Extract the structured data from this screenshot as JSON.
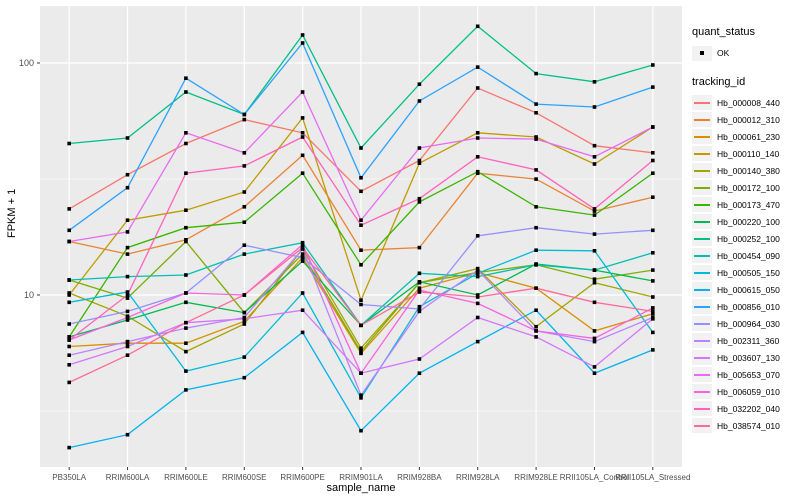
{
  "figure": {
    "y_axis_title": "FPKM + 1",
    "x_axis_title": "sample_name",
    "panel_background": "#EBEBEB",
    "gridline_color": "#FFFFFF",
    "tick_label_color": "#4D4D4D",
    "point_color": "#000000"
  },
  "legend": {
    "quant_status_title": "quant_status",
    "quant_status_items": [
      {
        "label": "OK",
        "marker": "black-point"
      }
    ],
    "tracking_id_title": "tracking_id"
  },
  "chart_data": {
    "type": "line",
    "title": "",
    "xlabel": "sample_name",
    "ylabel": "FPKM + 1",
    "y_scale": "log10",
    "ylim": [
      1.8,
      175
    ],
    "y_tick_values": [
      10,
      100
    ],
    "y_tick_labels": [
      "10",
      "100"
    ],
    "y_minor_gridlines": [
      3.162,
      31.62
    ],
    "grid": true,
    "legend_position": "right",
    "marker": "small black square on every point",
    "categories": [
      "PB350LA",
      "RRIM600LA",
      "RRIM600LE",
      "RRIM600SE",
      "RRIM600PE",
      "RRIM901LA",
      "RRIM928BA",
      "RRIM928LA",
      "RRIM928LE",
      "RRII105LA_Control",
      "RRII105LA_Stressed"
    ],
    "series": [
      {
        "name": "Hb_000008_440",
        "color": "#F8766D",
        "values": [
          23.5,
          33,
          45,
          57,
          50,
          28,
          38,
          78,
          61,
          44,
          41
        ]
      },
      {
        "name": "Hb_000012_310",
        "color": "#EA8331",
        "values": [
          17,
          15,
          17.3,
          24,
          40,
          15.6,
          16,
          33.5,
          31.6,
          23,
          26.4
        ]
      },
      {
        "name": "Hb_000061_230",
        "color": "#D89000",
        "values": [
          6.0,
          6.2,
          6.2,
          7.7,
          14.5,
          5.6,
          10.7,
          12.5,
          10.7,
          7.0,
          8.3
        ]
      },
      {
        "name": "Hb_000110_140",
        "color": "#C09B00",
        "values": [
          10,
          21,
          23.2,
          27.8,
          58,
          9.5,
          37,
          50,
          48,
          36.7,
          53
        ]
      },
      {
        "name": "Hb_000140_380",
        "color": "#A3A500",
        "values": [
          10.2,
          8.1,
          5.7,
          7.5,
          15.8,
          5.9,
          11.3,
          13,
          7.3,
          11.3,
          9.8
        ]
      },
      {
        "name": "Hb_000172_100",
        "color": "#7CAE00",
        "values": [
          11.6,
          9.7,
          17,
          8.4,
          15,
          5.7,
          11.3,
          12.5,
          13.5,
          11.7,
          12.8
        ]
      },
      {
        "name": "Hb_000173_470",
        "color": "#39B600",
        "values": [
          6.6,
          16,
          19.5,
          20.6,
          33.5,
          13.5,
          25.2,
          34,
          24,
          22.1,
          33.5
        ]
      },
      {
        "name": "Hb_000220_100",
        "color": "#00BB4E",
        "values": [
          6.6,
          7.8,
          9.3,
          8.4,
          14,
          7.4,
          11.4,
          10,
          13.6,
          12.8,
          11.5
        ]
      },
      {
        "name": "Hb_000252_100",
        "color": "#00C087",
        "values": [
          45,
          47.5,
          75,
          60,
          132,
          43,
          81,
          144,
          90,
          83,
          98
        ]
      },
      {
        "name": "Hb_000454_090",
        "color": "#00C0B2",
        "values": [
          11.6,
          12,
          12.2,
          15,
          16.8,
          7.4,
          12.4,
          12,
          13.5,
          12.8,
          15.2
        ]
      },
      {
        "name": "Hb_000505_150",
        "color": "#00BCD8",
        "values": [
          9.3,
          10.3,
          4.7,
          5.4,
          10.2,
          3.6,
          8.9,
          12.4,
          15.6,
          15.5,
          6.9
        ]
      },
      {
        "name": "Hb_000615_050",
        "color": "#00B3F0",
        "values": [
          2.2,
          2.5,
          3.9,
          4.4,
          6.9,
          2.6,
          4.6,
          6.3,
          8.6,
          4.6,
          5.8
        ]
      },
      {
        "name": "Hb_000856_010",
        "color": "#29A3FF",
        "values": [
          19,
          29,
          86,
          60,
          122,
          32,
          68.6,
          96,
          66.5,
          64.6,
          78.7
        ]
      },
      {
        "name": "Hb_000964_030",
        "color": "#9590FF",
        "values": [
          7.5,
          8.5,
          10.2,
          16.4,
          14.5,
          9.1,
          8.7,
          18,
          19.5,
          18.3,
          19
        ]
      },
      {
        "name": "Hb_002311_360",
        "color": "#B983FF",
        "values": [
          5.5,
          6.3,
          7.2,
          8.0,
          15.8,
          3.7,
          8.5,
          12.8,
          7.0,
          6.3,
          8.0
        ]
      },
      {
        "name": "Hb_003607_130",
        "color": "#D575FE",
        "values": [
          5.0,
          6.0,
          7.6,
          7.9,
          8.6,
          4.6,
          5.3,
          8.0,
          6.6,
          4.9,
          7.9
        ]
      },
      {
        "name": "Hb_005653_070",
        "color": "#E76BF3",
        "values": [
          17,
          18.7,
          50,
          41,
          75,
          21,
          43,
          47.5,
          47,
          39.4,
          53
        ]
      },
      {
        "name": "Hb_006059_010",
        "color": "#F763E0",
        "values": [
          6.4,
          8,
          10.2,
          10,
          16.5,
          4.6,
          10.5,
          9.2,
          7,
          6.5,
          8.8
        ]
      },
      {
        "name": "Hb_032202_040",
        "color": "#FF62BC",
        "values": [
          6.4,
          10,
          33.5,
          36,
          48,
          20,
          26,
          39.4,
          34.6,
          23.5,
          38
        ]
      },
      {
        "name": "Hb_038574_010",
        "color": "#FF6A9A",
        "values": [
          4.2,
          5.5,
          7.6,
          10,
          16,
          7.4,
          10.3,
          9.8,
          10.7,
          9.3,
          8.5
        ]
      }
    ]
  }
}
